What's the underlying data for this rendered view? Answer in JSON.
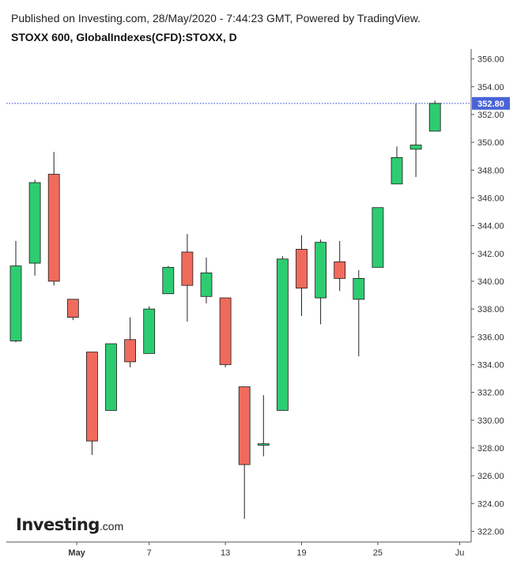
{
  "header": {
    "published": "Published on Investing.com, 28/May/2020 - 7:44:23 GMT, Powered by TradingView.",
    "symbol": "STOXX 600, GlobalIndexes(CFD):STOXX, D"
  },
  "logo": {
    "main": "Investing",
    "suffix": ".com"
  },
  "colors": {
    "up": "#2ecc71",
    "down": "#f06b5c",
    "wick": "#222222",
    "axis": "#555555",
    "last_price_line": "#2a3bd6",
    "last_price_badge": "#4a64d8"
  },
  "chart_data": {
    "type": "candlestick",
    "ylim": [
      321,
      357
    ],
    "y_ticks": [
      "356.00",
      "354.00",
      "352.00",
      "350.00",
      "348.00",
      "346.00",
      "344.00",
      "342.00",
      "340.00",
      "338.00",
      "336.00",
      "334.00",
      "332.00",
      "330.00",
      "328.00",
      "326.00",
      "324.00",
      "322.00"
    ],
    "x_ticks": [
      {
        "label": "May",
        "index": 3.2
      },
      {
        "label": "7",
        "index": 7
      },
      {
        "label": "13",
        "index": 11
      },
      {
        "label": "19",
        "index": 15
      },
      {
        "label": "25",
        "index": 19
      },
      {
        "label": "Ju",
        "index": 23.3
      }
    ],
    "last_price": 352.8,
    "last_price_label": "352.80",
    "candles": [
      {
        "o": 335.7,
        "h": 342.9,
        "l": 335.6,
        "c": 341.1
      },
      {
        "o": 341.3,
        "h": 347.3,
        "l": 340.4,
        "c": 347.1
      },
      {
        "o": 347.7,
        "h": 349.3,
        "l": 339.7,
        "c": 340.0
      },
      {
        "o": 338.7,
        "h": 338.7,
        "l": 337.2,
        "c": 337.4
      },
      {
        "o": 334.9,
        "h": 334.9,
        "l": 327.5,
        "c": 328.5
      },
      {
        "o": 330.7,
        "h": 335.5,
        "l": 330.7,
        "c": 335.5
      },
      {
        "o": 335.8,
        "h": 337.4,
        "l": 333.8,
        "c": 334.2
      },
      {
        "o": 334.8,
        "h": 338.2,
        "l": 334.8,
        "c": 338.0
      },
      {
        "o": 339.1,
        "h": 341.1,
        "l": 339.1,
        "c": 341.0
      },
      {
        "o": 342.1,
        "h": 343.4,
        "l": 337.1,
        "c": 339.7
      },
      {
        "o": 338.9,
        "h": 341.7,
        "l": 338.4,
        "c": 340.6
      },
      {
        "o": 338.8,
        "h": 338.8,
        "l": 333.8,
        "c": 334.0
      },
      {
        "o": 332.4,
        "h": 332.4,
        "l": 322.9,
        "c": 326.8
      },
      {
        "o": 328.2,
        "h": 331.8,
        "l": 327.4,
        "c": 328.3
      },
      {
        "o": 330.7,
        "h": 341.8,
        "l": 330.7,
        "c": 341.6
      },
      {
        "o": 342.3,
        "h": 343.3,
        "l": 337.5,
        "c": 339.5
      },
      {
        "o": 338.8,
        "h": 343.0,
        "l": 336.9,
        "c": 342.8
      },
      {
        "o": 341.4,
        "h": 342.9,
        "l": 339.3,
        "c": 340.2
      },
      {
        "o": 338.7,
        "h": 340.8,
        "l": 334.6,
        "c": 340.2
      },
      {
        "o": 341.0,
        "h": 345.3,
        "l": 341.0,
        "c": 345.3
      },
      {
        "o": 347.0,
        "h": 349.7,
        "l": 347.0,
        "c": 348.9
      },
      {
        "o": 349.5,
        "h": 352.8,
        "l": 347.5,
        "c": 349.8
      },
      {
        "o": 350.8,
        "h": 353.0,
        "l": 350.8,
        "c": 352.8
      }
    ]
  }
}
